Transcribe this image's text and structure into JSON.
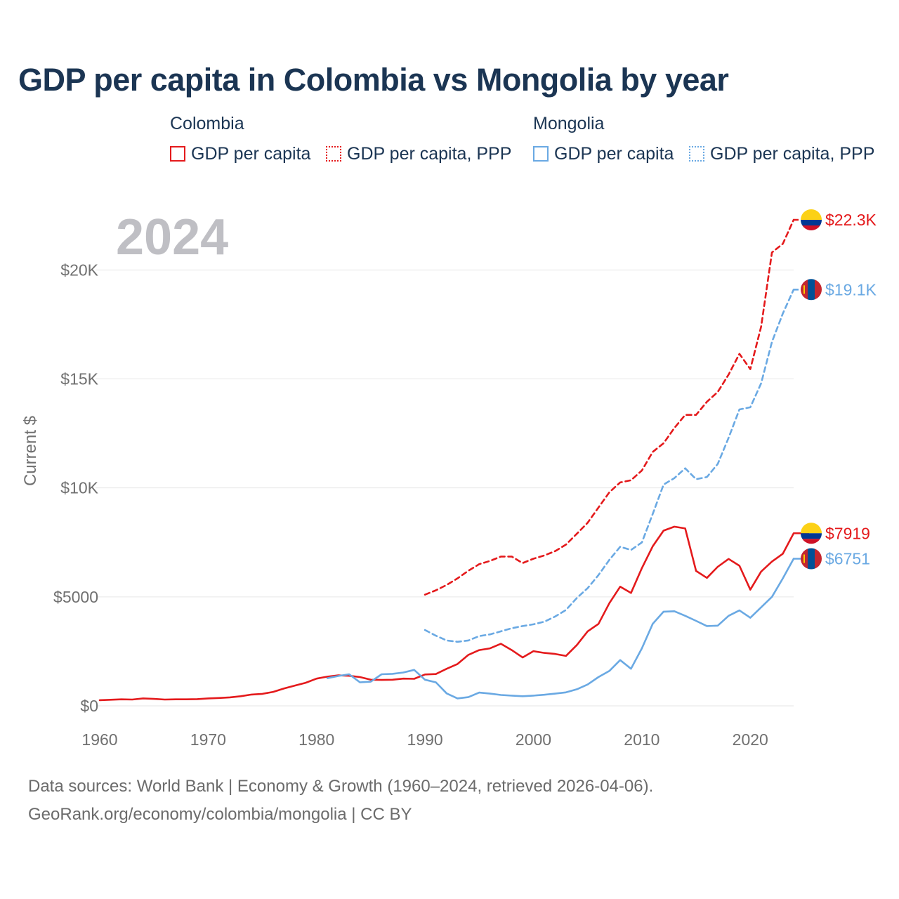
{
  "title": "GDP per capita in Colombia vs Mongolia by year",
  "legend": {
    "colombia": {
      "name": "Colombia",
      "gdp": "GDP per capita",
      "ppp": "GDP per capita, PPP"
    },
    "mongolia": {
      "name": "Mongolia",
      "gdp": "GDP per capita",
      "ppp": "GDP per capita, PPP"
    }
  },
  "colors": {
    "colombia": "#e41a1c",
    "mongolia": "#6aa9e3",
    "grid": "#e6e6e6",
    "axis_text": "#707070",
    "year_watermark": "#bfbfc4"
  },
  "footer": {
    "line1": "Data sources: World Bank | Economy & Growth (1960–2024, retrieved 2026-04-06).",
    "line2": "GeoRank.org/economy/colombia/mongolia | CC BY"
  },
  "chart_data": {
    "type": "line",
    "year_label": "2024",
    "ylabel": "Current $",
    "xlim": [
      1960,
      2024
    ],
    "ylim": [
      0,
      22300
    ],
    "x_ticks": [
      1960,
      1970,
      1980,
      1990,
      2000,
      2010,
      2020
    ],
    "x_tick_labels": [
      "1960",
      "1970",
      "1980",
      "1990",
      "2000",
      "2010",
      "2020"
    ],
    "y_ticks": [
      0,
      5000,
      10000,
      15000,
      20000
    ],
    "y_tick_labels": [
      "$0",
      "$5000",
      "$10K",
      "$15K",
      "$20K"
    ],
    "series": [
      {
        "name": "Colombia GDP per capita",
        "country": "colombia",
        "style": "solid",
        "end_label": "$7919",
        "x": [
          1960,
          1961,
          1962,
          1963,
          1964,
          1965,
          1966,
          1967,
          1968,
          1969,
          1970,
          1971,
          1972,
          1973,
          1974,
          1975,
          1976,
          1977,
          1978,
          1979,
          1980,
          1981,
          1982,
          1983,
          1984,
          1985,
          1986,
          1987,
          1988,
          1989,
          1990,
          1991,
          1992,
          1993,
          1994,
          1995,
          1996,
          1997,
          1998,
          1999,
          2000,
          2001,
          2002,
          2003,
          2004,
          2005,
          2006,
          2007,
          2008,
          2009,
          2010,
          2011,
          2012,
          2013,
          2014,
          2015,
          2016,
          2017,
          2018,
          2019,
          2020,
          2021,
          2022,
          2023,
          2024
        ],
        "values": [
          260,
          280,
          300,
          290,
          340,
          320,
          290,
          300,
          300,
          310,
          340,
          360,
          390,
          440,
          520,
          550,
          640,
          800,
          930,
          1060,
          1250,
          1340,
          1400,
          1380,
          1320,
          1200,
          1190,
          1200,
          1250,
          1240,
          1440,
          1460,
          1700,
          1920,
          2340,
          2560,
          2640,
          2850,
          2560,
          2220,
          2510,
          2430,
          2380,
          2290,
          2790,
          3420,
          3760,
          4710,
          5470,
          5180,
          6320,
          7320,
          8040,
          8220,
          8140,
          6190,
          5870,
          6380,
          6740,
          6430,
          5330,
          6160,
          6620,
          6980,
          7919
        ]
      },
      {
        "name": "Colombia GDP per capita, PPP",
        "country": "colombia",
        "style": "dashed",
        "end_label": "$22.3K",
        "x": [
          1990,
          1991,
          1992,
          1993,
          1994,
          1995,
          1996,
          1997,
          1998,
          1999,
          2000,
          2001,
          2002,
          2003,
          2004,
          2005,
          2006,
          2007,
          2008,
          2009,
          2010,
          2011,
          2012,
          2013,
          2014,
          2015,
          2016,
          2017,
          2018,
          2019,
          2020,
          2021,
          2022,
          2023,
          2024
        ],
        "values": [
          5100,
          5300,
          5550,
          5850,
          6200,
          6500,
          6650,
          6850,
          6850,
          6550,
          6750,
          6900,
          7100,
          7400,
          7900,
          8400,
          9100,
          9800,
          10250,
          10350,
          10800,
          11650,
          12050,
          12750,
          13350,
          13350,
          13950,
          14400,
          15200,
          16150,
          15450,
          17400,
          20800,
          21200,
          22300
        ]
      },
      {
        "name": "Mongolia GDP per capita",
        "country": "mongolia",
        "style": "solid",
        "end_label": "$6751",
        "x": [
          1981,
          1982,
          1983,
          1984,
          1985,
          1986,
          1987,
          1988,
          1989,
          1990,
          1991,
          1992,
          1993,
          1994,
          1995,
          1996,
          1997,
          1998,
          1999,
          2000,
          2001,
          2002,
          2003,
          2004,
          2005,
          2006,
          2007,
          2008,
          2009,
          2010,
          2011,
          2012,
          2013,
          2014,
          2015,
          2016,
          2017,
          2018,
          2019,
          2020,
          2021,
          2022,
          2023,
          2024
        ],
        "values": [
          1270,
          1370,
          1450,
          1080,
          1110,
          1450,
          1470,
          1530,
          1650,
          1200,
          1080,
          570,
          340,
          400,
          610,
          560,
          500,
          470,
          440,
          470,
          510,
          560,
          620,
          760,
          980,
          1320,
          1600,
          2100,
          1700,
          2640,
          3760,
          4320,
          4340,
          4130,
          3900,
          3660,
          3680,
          4130,
          4380,
          4040,
          4520,
          5000,
          5850,
          6751
        ]
      },
      {
        "name": "Mongolia GDP per capita, PPP",
        "country": "mongolia",
        "style": "dashed",
        "end_label": "$19.1K",
        "x": [
          1990,
          1991,
          1992,
          1993,
          1994,
          1995,
          1996,
          1997,
          1998,
          1999,
          2000,
          2001,
          2002,
          2003,
          2004,
          2005,
          2006,
          2007,
          2008,
          2009,
          2010,
          2011,
          2012,
          2013,
          2014,
          2015,
          2016,
          2017,
          2018,
          2019,
          2020,
          2021,
          2022,
          2023,
          2024
        ],
        "values": [
          3480,
          3220,
          3000,
          2940,
          3000,
          3200,
          3280,
          3420,
          3560,
          3660,
          3740,
          3860,
          4100,
          4400,
          4950,
          5400,
          6000,
          6700,
          7300,
          7150,
          7500,
          8800,
          10150,
          10450,
          10900,
          10400,
          10500,
          11100,
          12300,
          13600,
          13700,
          14800,
          16700,
          18000,
          19100
        ]
      }
    ]
  }
}
